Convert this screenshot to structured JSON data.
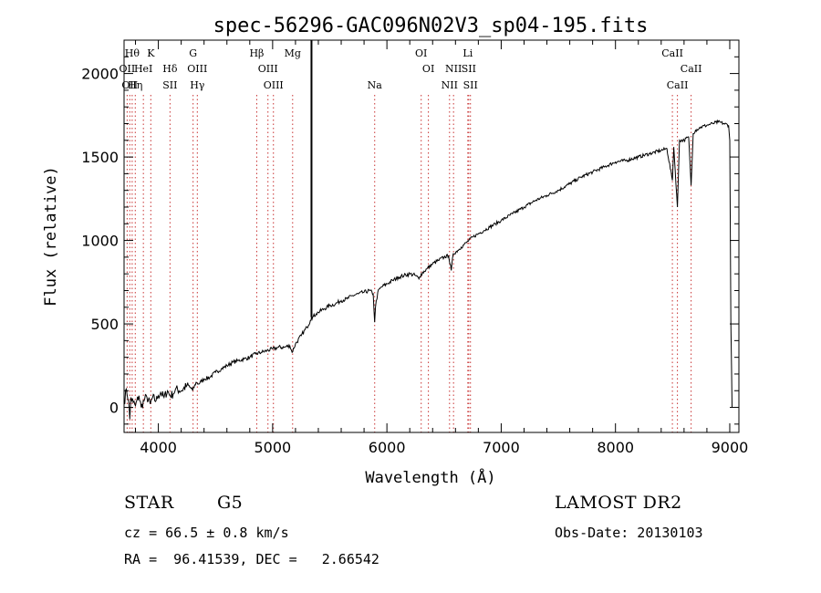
{
  "chart_data": {
    "type": "line",
    "title": "spec-56296-GAC096N02V3_sp04-195.fits",
    "xlabel": "Wavelength (Å)",
    "ylabel": "Flux (relative)",
    "xlim": [
      3700,
      9080
    ],
    "ylim": [
      -150,
      2200
    ],
    "x_ticks": [
      4000,
      5000,
      6000,
      7000,
      8000,
      9000
    ],
    "y_ticks": [
      0,
      500,
      1000,
      1500,
      2000
    ],
    "grid": false,
    "series": [
      {
        "points": [
          [
            3700,
            20
          ],
          [
            3720,
            110
          ],
          [
            3740,
            40
          ],
          [
            3750,
            -70
          ],
          [
            3760,
            60
          ],
          [
            3780,
            30
          ],
          [
            3800,
            10
          ],
          [
            3830,
            70
          ],
          [
            3850,
            0
          ],
          [
            3880,
            50
          ],
          [
            3900,
            60
          ],
          [
            3930,
            20
          ],
          [
            3950,
            60
          ],
          [
            3980,
            40
          ],
          [
            4000,
            70
          ],
          [
            4020,
            90
          ],
          [
            4050,
            60
          ],
          [
            4080,
            100
          ],
          [
            4100,
            70
          ],
          [
            4130,
            80
          ],
          [
            4150,
            110
          ],
          [
            4200,
            100
          ],
          [
            4250,
            130
          ],
          [
            4280,
            120
          ],
          [
            4300,
            100
          ],
          [
            4330,
            150
          ],
          [
            4350,
            140
          ],
          [
            4400,
            170
          ],
          [
            4450,
            180
          ],
          [
            4500,
            210
          ],
          [
            4550,
            230
          ],
          [
            4600,
            250
          ],
          [
            4650,
            270
          ],
          [
            4700,
            280
          ],
          [
            4750,
            290
          ],
          [
            4800,
            300
          ],
          [
            4850,
            320
          ],
          [
            4900,
            330
          ],
          [
            4950,
            340
          ],
          [
            5000,
            350
          ],
          [
            5050,
            360
          ],
          [
            5100,
            360
          ],
          [
            5150,
            370
          ],
          [
            5170,
            330
          ],
          [
            5200,
            380
          ],
          [
            5250,
            430
          ],
          [
            5300,
            480
          ],
          [
            5330,
            520
          ],
          [
            5340,
            540
          ],
          [
            5350,
            540
          ],
          [
            5380,
            560
          ],
          [
            5400,
            570
          ],
          [
            5450,
            590
          ],
          [
            5500,
            610
          ],
          [
            5550,
            620
          ],
          [
            5600,
            640
          ],
          [
            5650,
            650
          ],
          [
            5700,
            670
          ],
          [
            5750,
            680
          ],
          [
            5800,
            690
          ],
          [
            5850,
            700
          ],
          [
            5880,
            680
          ],
          [
            5893,
            510
          ],
          [
            5900,
            600
          ],
          [
            5920,
            690
          ],
          [
            5950,
            720
          ],
          [
            6000,
            740
          ],
          [
            6050,
            760
          ],
          [
            6100,
            780
          ],
          [
            6150,
            790
          ],
          [
            6200,
            800
          ],
          [
            6250,
            790
          ],
          [
            6280,
            770
          ],
          [
            6300,
            800
          ],
          [
            6350,
            830
          ],
          [
            6400,
            860
          ],
          [
            6450,
            880
          ],
          [
            6500,
            900
          ],
          [
            6540,
            910
          ],
          [
            6563,
            820
          ],
          [
            6580,
            920
          ],
          [
            6620,
            940
          ],
          [
            6650,
            960
          ],
          [
            6700,
            990
          ],
          [
            6750,
            1020
          ],
          [
            6800,
            1040
          ],
          [
            6850,
            1060
          ],
          [
            6900,
            1080
          ],
          [
            6950,
            1100
          ],
          [
            7000,
            1120
          ],
          [
            7100,
            1160
          ],
          [
            7200,
            1200
          ],
          [
            7300,
            1240
          ],
          [
            7400,
            1270
          ],
          [
            7500,
            1300
          ],
          [
            7600,
            1340
          ],
          [
            7700,
            1380
          ],
          [
            7800,
            1410
          ],
          [
            7900,
            1440
          ],
          [
            8000,
            1470
          ],
          [
            8100,
            1480
          ],
          [
            8200,
            1500
          ],
          [
            8300,
            1520
          ],
          [
            8400,
            1540
          ],
          [
            8450,
            1550
          ],
          [
            8498,
            1360
          ],
          [
            8510,
            1560
          ],
          [
            8542,
            1200
          ],
          [
            8560,
            1600
          ],
          [
            8600,
            1600
          ],
          [
            8640,
            1620
          ],
          [
            8662,
            1330
          ],
          [
            8680,
            1640
          ],
          [
            8700,
            1660
          ],
          [
            8750,
            1680
          ],
          [
            8800,
            1690
          ],
          [
            8850,
            1700
          ],
          [
            8900,
            1710
          ],
          [
            8950,
            1700
          ],
          [
            8990,
            1690
          ],
          [
            9000,
            1600
          ],
          [
            9010,
            500
          ],
          [
            9020,
            0
          ]
        ]
      }
    ],
    "line_markers": [
      {
        "wavelength": 3727,
        "labels": [
          {
            "text": "OII",
            "row": 2
          }
        ]
      },
      {
        "wavelength": 3750,
        "labels": [
          {
            "text": "OII",
            "row": 3
          }
        ]
      },
      {
        "wavelength": 3771,
        "labels": [
          {
            "text": "Hθ",
            "row": 1
          }
        ]
      },
      {
        "wavelength": 3798,
        "labels": [
          {
            "text": "Hη",
            "row": 3
          }
        ]
      },
      {
        "wavelength": 3869,
        "labels": [
          {
            "text": "HeI",
            "row": 2
          }
        ]
      },
      {
        "wavelength": 3934,
        "labels": [
          {
            "text": "K",
            "row": 1
          }
        ]
      },
      {
        "wavelength": 4102,
        "labels": [
          {
            "text": "Hδ",
            "row": 2
          },
          {
            "text": "SII",
            "row": 3
          }
        ]
      },
      {
        "wavelength": 4304,
        "labels": [
          {
            "text": "G",
            "row": 1
          }
        ]
      },
      {
        "wavelength": 4341,
        "labels": [
          {
            "text": "OIII",
            "row": 2
          },
          {
            "text": "Hγ",
            "row": 3
          }
        ]
      },
      {
        "wavelength": 4861,
        "labels": [
          {
            "text": "Hβ",
            "row": 1
          }
        ]
      },
      {
        "wavelength": 4959,
        "labels": [
          {
            "text": "OIII",
            "row": 2
          }
        ]
      },
      {
        "wavelength": 5007,
        "labels": [
          {
            "text": "OIII",
            "row": 3
          }
        ]
      },
      {
        "wavelength": 5175,
        "labels": [
          {
            "text": "Mg",
            "row": 1
          }
        ]
      },
      {
        "wavelength": 5893,
        "labels": [
          {
            "text": "Na",
            "row": 3
          }
        ]
      },
      {
        "wavelength": 6300,
        "labels": [
          {
            "text": "OI",
            "row": 1
          }
        ]
      },
      {
        "wavelength": 6363,
        "labels": [
          {
            "text": "OI",
            "row": 2
          }
        ]
      },
      {
        "wavelength": 6548,
        "labels": [
          {
            "text": "NII",
            "row": 3
          }
        ]
      },
      {
        "wavelength": 6583,
        "labels": [
          {
            "text": "NII",
            "row": 2
          }
        ]
      },
      {
        "wavelength": 6708,
        "labels": [
          {
            "text": "Li",
            "row": 1
          }
        ]
      },
      {
        "wavelength": 6716,
        "labels": [
          {
            "text": "SII",
            "row": 2
          }
        ]
      },
      {
        "wavelength": 6731,
        "labels": [
          {
            "text": "SII",
            "row": 3
          }
        ]
      },
      {
        "wavelength": 8498,
        "labels": [
          {
            "text": "CaII",
            "row": 1
          }
        ]
      },
      {
        "wavelength": 8542,
        "labels": [
          {
            "text": "CaII",
            "row": 3
          }
        ]
      },
      {
        "wavelength": 8662,
        "labels": [
          {
            "text": "CaII",
            "row": 2
          }
        ]
      }
    ],
    "emission_spike": {
      "wavelength": 5340,
      "peak": 2200,
      "base": 540
    }
  },
  "footer": {
    "object_class": "STAR",
    "subclass": "G5",
    "release": "LAMOST DR2",
    "cz": "cz = 66.5 ± 0.8 km/s",
    "obs_date": "Obs-Date: 20130103",
    "coords": "RA =  96.41539, DEC =   2.66542"
  }
}
